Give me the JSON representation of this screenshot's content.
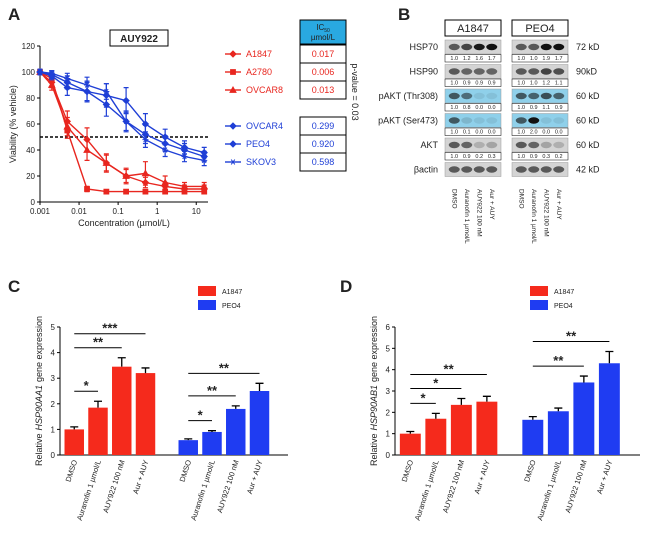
{
  "chart_data": [
    {
      "type": "line",
      "panel": "A",
      "title": "AUY922",
      "xlabel": "Concentration (µmol/L)",
      "ylabel": "Viability (% vehicle)",
      "log_x": true,
      "xlim": [
        0.001,
        20
      ],
      "xticks": [
        0.001,
        0.01,
        0.1,
        1,
        10
      ],
      "ylim": [
        0,
        120
      ],
      "yticks": [
        0,
        20,
        40,
        60,
        80,
        100,
        120
      ],
      "hline": 50,
      "annotation": "p-value = 0.03",
      "table_header": {
        "main": "IC",
        "sub": "50",
        "unit": "µmol/L"
      },
      "x": [
        0.001,
        0.002,
        0.005,
        0.016,
        0.05,
        0.16,
        0.5,
        1.6,
        5,
        16
      ],
      "series": [
        {
          "name": "A1847",
          "color": "#e8261f",
          "marker": "diamond",
          "ic50": "0.017",
          "values": [
            100,
            92,
            62,
            48,
            30,
            20,
            15,
            12,
            10,
            10
          ],
          "errors": [
            2,
            4,
            8,
            9,
            6,
            5,
            4,
            3,
            3,
            3
          ]
        },
        {
          "name": "A2780",
          "color": "#e8261f",
          "marker": "square",
          "ic50": "0.006",
          "values": [
            100,
            95,
            55,
            10,
            8,
            8,
            8,
            8,
            8,
            8
          ],
          "errors": [
            2,
            3,
            6,
            2,
            1,
            1,
            1,
            1,
            1,
            1
          ]
        },
        {
          "name": "OVCAR8",
          "color": "#e8261f",
          "marker": "triangle",
          "ic50": "0.013",
          "values": [
            100,
            90,
            58,
            40,
            30,
            20,
            22,
            15,
            12,
            12
          ],
          "errors": [
            2,
            4,
            7,
            8,
            7,
            6,
            9,
            5,
            3,
            3
          ]
        },
        {
          "name": "OVCAR4",
          "color": "#1f3fd6",
          "marker": "diamond",
          "ic50": "0.299",
          "values": [
            100,
            98,
            92,
            85,
            75,
            62,
            52,
            45,
            40,
            35
          ],
          "errors": [
            2,
            3,
            5,
            7,
            9,
            8,
            7,
            6,
            5,
            4
          ]
        },
        {
          "name": "PEO4",
          "color": "#1f3fd6",
          "marker": "diamond",
          "ic50": "0.920",
          "values": [
            100,
            97,
            88,
            85,
            82,
            78,
            60,
            50,
            42,
            38
          ],
          "errors": [
            2,
            3,
            6,
            8,
            9,
            10,
            8,
            6,
            5,
            4
          ]
        },
        {
          "name": "SKOV3",
          "color": "#1f3fd6",
          "marker": "star",
          "ic50": "0.598",
          "values": [
            100,
            99,
            95,
            90,
            85,
            62,
            48,
            40,
            35,
            32
          ],
          "errors": [
            2,
            2,
            4,
            6,
            6,
            7,
            6,
            5,
            4,
            4
          ]
        }
      ]
    },
    {
      "type": "bar",
      "panel": "C",
      "ylabel": {
        "prefix": "Relative",
        "gene": "HSP90AA1",
        "suffix": "gene expression"
      },
      "ylim": [
        0,
        5
      ],
      "yticks": [
        0,
        1,
        2,
        3,
        4,
        5
      ],
      "categories": [
        "DMSO",
        "Auranofin 1 µmol/L",
        "AUY922 100 nM",
        "Aur + AUY"
      ],
      "series": [
        {
          "name": "A1847",
          "color": "#f52a1c",
          "values": [
            1.0,
            1.85,
            3.45,
            3.2
          ],
          "errors": [
            0.1,
            0.25,
            0.35,
            0.2
          ],
          "brackets": [
            {
              "from": 0,
              "to": 1,
              "label": "*"
            },
            {
              "from": 0,
              "to": 2,
              "label": "**"
            },
            {
              "from": 0,
              "to": 3,
              "label": "***"
            }
          ]
        },
        {
          "name": "PEO4",
          "color": "#1f3cf2",
          "values": [
            0.58,
            0.9,
            1.8,
            2.5
          ],
          "errors": [
            0.05,
            0.05,
            0.12,
            0.3
          ],
          "brackets": [
            {
              "from": 0,
              "to": 1,
              "label": "*"
            },
            {
              "from": 0,
              "to": 2,
              "label": "**"
            },
            {
              "from": 0,
              "to": 3,
              "label": "**"
            }
          ]
        }
      ]
    },
    {
      "type": "bar",
      "panel": "D",
      "ylabel": {
        "prefix": "Relative",
        "gene": "HSP90AB1",
        "suffix": "gene expression"
      },
      "ylim": [
        0,
        6
      ],
      "yticks": [
        0,
        1,
        2,
        3,
        4,
        5,
        6
      ],
      "categories": [
        "DMSO",
        "Auranofin 1 µmol/L",
        "AUY922 100 nM",
        "Aur + AUY"
      ],
      "series": [
        {
          "name": "A1847",
          "color": "#f52a1c",
          "values": [
            1.0,
            1.7,
            2.35,
            2.5
          ],
          "errors": [
            0.1,
            0.25,
            0.3,
            0.25
          ],
          "brackets": [
            {
              "from": 0,
              "to": 1,
              "label": "*"
            },
            {
              "from": 0,
              "to": 2,
              "label": "*"
            },
            {
              "from": 0,
              "to": 3,
              "label": "**"
            }
          ]
        },
        {
          "name": "PEO4",
          "color": "#1f3cf2",
          "values": [
            1.65,
            2.05,
            3.4,
            4.3
          ],
          "errors": [
            0.15,
            0.15,
            0.3,
            0.55
          ],
          "brackets": [
            {
              "from": 0,
              "to": 2,
              "label": "**"
            },
            {
              "from": 0,
              "to": 3,
              "label": "**"
            }
          ]
        }
      ]
    }
  ],
  "western_blot": {
    "panel": "B",
    "cell_lines": [
      "A1847",
      "PEO4"
    ],
    "lanes": [
      "DMSO",
      "Auranofin 1 µmol/L",
      "AUY922 100 nM",
      "Aur + AUY"
    ],
    "rows": [
      {
        "label": "HSP70",
        "size": "72 kD",
        "color": "#d4d4d4",
        "quant": [
          [
            "1.0",
            "1.2",
            "1.6",
            "1.7"
          ],
          [
            "1.0",
            "1.0",
            "1.9",
            "1.7"
          ]
        ]
      },
      {
        "label": "HSP90",
        "size": "90kD",
        "color": "#d4d4d4",
        "quant": [
          [
            "1.0",
            "0.9",
            "0.9",
            "0.9"
          ],
          [
            "1.0",
            "1.0",
            "1.2",
            "1.1"
          ]
        ]
      },
      {
        "label": "pAKT (Thr308)",
        "size": "60 kD",
        "color": "#8fd0ea",
        "quant": [
          [
            "1.0",
            "0.8",
            "0.0",
            "0.0"
          ],
          [
            "1.0",
            "0.9",
            "1.1",
            "0.9"
          ]
        ]
      },
      {
        "label": "pAKT (Ser473)",
        "size": "60 kD",
        "color": "#8fd0ea",
        "quant": [
          [
            "1.0",
            "0.1",
            "0.0",
            "0.0"
          ],
          [
            "1.0",
            "2.0",
            "0.0",
            "0.0"
          ]
        ]
      },
      {
        "label": "AKT",
        "size": "60 kD",
        "color": "#d4d4d4",
        "quant": [
          [
            "1.0",
            "0.9",
            "0.2",
            "0.3"
          ],
          [
            "1.0",
            "0.9",
            "0.3",
            "0.2"
          ]
        ]
      },
      {
        "label": "βactin",
        "size": "42 kD",
        "color": "#d4d4d4"
      }
    ]
  }
}
